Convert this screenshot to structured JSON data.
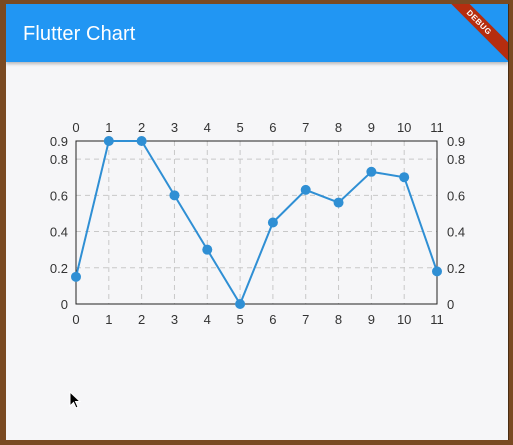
{
  "app": {
    "title": "Flutter Chart",
    "debug_banner": "DEBUG"
  },
  "chart_data": {
    "type": "line",
    "x": [
      0,
      1,
      2,
      3,
      4,
      5,
      6,
      7,
      8,
      9,
      10,
      11
    ],
    "series": [
      {
        "values": [
          0.15,
          0.9,
          0.9,
          0.6,
          0.3,
          0.0,
          0.45,
          0.63,
          0.56,
          0.73,
          0.7,
          0.18
        ]
      }
    ],
    "x_ticks": [
      "0",
      "1",
      "2",
      "3",
      "4",
      "5",
      "6",
      "7",
      "8",
      "9",
      "10",
      "11"
    ],
    "y_ticks": [
      {
        "value": 0,
        "label": "0"
      },
      {
        "value": 0.2,
        "label": "0.2"
      },
      {
        "value": 0.4,
        "label": "0.4"
      },
      {
        "value": 0.6,
        "label": "0.6"
      },
      {
        "value": 0.8,
        "label": "0.8"
      },
      {
        "value": 0.9,
        "label": "0.9"
      }
    ],
    "xlim": [
      0,
      11
    ],
    "ylim": [
      0,
      0.9
    ],
    "grid": true,
    "axes_mirrored": true,
    "colors": {
      "line": "#2f8fd4",
      "point": "#2f8fd4",
      "grid": "#c8c8c8",
      "frame": "#222222"
    }
  }
}
